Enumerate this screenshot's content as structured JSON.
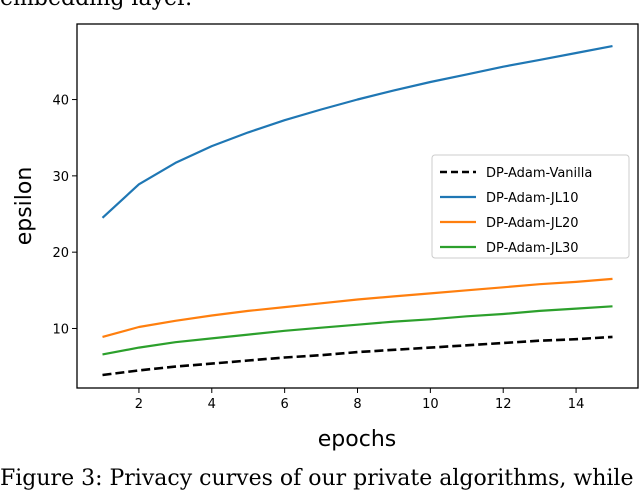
{
  "captions": {
    "top": "embedding layer.",
    "bottom": "Figure 3: Privacy curves of our private algorithms, while"
  },
  "chart_data": {
    "type": "line",
    "title": "",
    "xlabel": "epochs",
    "ylabel": "epsilon",
    "xlim": [
      0.3,
      15.7
    ],
    "ylim": [
      2.2,
      49.9
    ],
    "xticks": [
      2,
      4,
      6,
      8,
      10,
      12,
      14
    ],
    "yticks": [
      10,
      20,
      30,
      40
    ],
    "grid": false,
    "legend_position": "center right",
    "x": [
      1,
      2,
      3,
      4,
      5,
      6,
      7,
      8,
      9,
      10,
      11,
      12,
      13,
      14,
      15
    ],
    "series": [
      {
        "name": "DP-Adam-Vanilla",
        "color": "#000000",
        "dash": "dashed",
        "values": [
          3.9,
          4.5,
          5.0,
          5.4,
          5.8,
          6.2,
          6.5,
          6.9,
          7.2,
          7.5,
          7.8,
          8.1,
          8.4,
          8.6,
          8.9
        ]
      },
      {
        "name": "DP-Adam-JL10",
        "color": "#1f77b4",
        "dash": "solid",
        "values": [
          24.5,
          28.9,
          31.7,
          33.9,
          35.7,
          37.3,
          38.7,
          40.0,
          41.2,
          42.3,
          43.3,
          44.3,
          45.2,
          46.1,
          47.0
        ]
      },
      {
        "name": "DP-Adam-JL20",
        "color": "#ff7f0e",
        "dash": "solid",
        "values": [
          8.9,
          10.2,
          11.0,
          11.7,
          12.3,
          12.8,
          13.3,
          13.8,
          14.2,
          14.6,
          15.0,
          15.4,
          15.8,
          16.1,
          16.5
        ]
      },
      {
        "name": "DP-Adam-JL30",
        "color": "#2ca02c",
        "dash": "solid",
        "values": [
          6.6,
          7.5,
          8.2,
          8.7,
          9.2,
          9.7,
          10.1,
          10.5,
          10.9,
          11.2,
          11.6,
          11.9,
          12.3,
          12.6,
          12.9
        ]
      }
    ]
  }
}
